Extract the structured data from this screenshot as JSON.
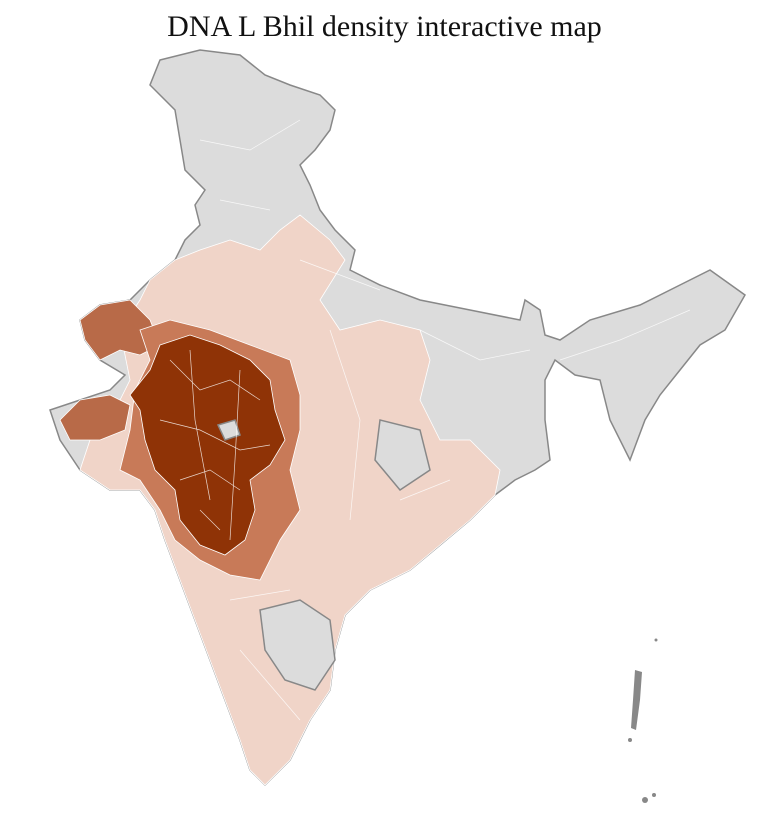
{
  "title": "DNA L Bhil density interactive map"
}
